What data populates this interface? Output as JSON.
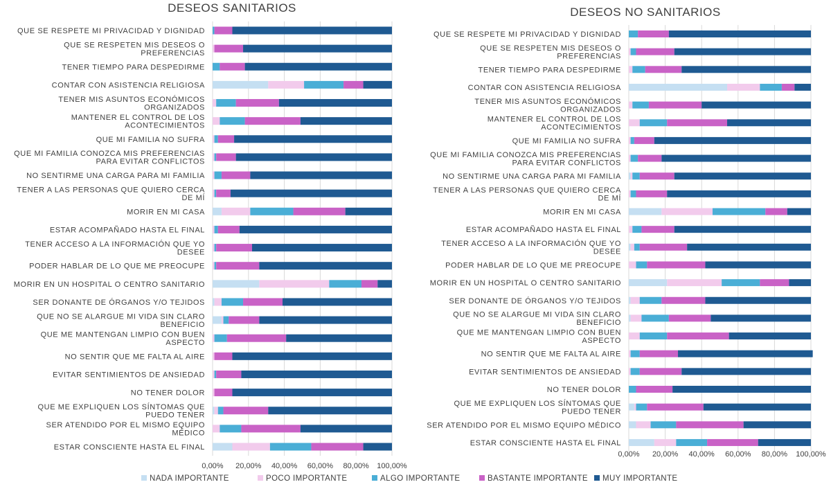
{
  "legend": [
    {
      "label": "NADA IMPORTANTE",
      "color": "#c5dff2"
    },
    {
      "label": "POCO IMPORTANTE",
      "color": "#f2cbec"
    },
    {
      "label": "ALGO IMPORTANTE",
      "color": "#4aaed6"
    },
    {
      "label": "BASTANTE IMPORTANTE",
      "color": "#c962c6"
    },
    {
      "label": "MUY IMPORTANTE",
      "color": "#1f5a92"
    }
  ],
  "chart_data": [
    {
      "type": "bar",
      "orientation": "horizontal",
      "stacked": true,
      "title": "DESEOS SANITARIOS",
      "xlim": [
        0,
        100
      ],
      "xticks": [
        "0,00%",
        "20,00%",
        "40,00%",
        "60,00%",
        "80,00%",
        "100,00%"
      ],
      "grid": true,
      "legend_position": "bottom",
      "categories": [
        [
          "QUE SE RESPETE MI PRIVACIDAD Y DIGNIDAD"
        ],
        [
          "QUE SE RESPETEN MIS DESEOS O",
          "PREFERENCIAS"
        ],
        [
          "TENER TIEMPO PARA DESPEDIRME"
        ],
        [
          "CONTAR CON ASISTENCIA RELIGIOSA"
        ],
        [
          "TENER MIS ASUNTOS ECONÓMICOS",
          "ORGANIZADOS"
        ],
        [
          "MANTENER EL CONTROL DE LOS",
          "ACONTECIMIENTOS"
        ],
        [
          "QUE MI FAMILIA NO SUFRA"
        ],
        [
          "QUE MI FAMILIA CONOZCA MIS PREFERENCIAS",
          "PARA EVITAR CONFLICTOS"
        ],
        [
          "NO SENTIRME UNA CARGA PARA MI FAMILIA"
        ],
        [
          "TENER A LAS PERSONAS QUE QUIERO CERCA",
          "DE MÍ"
        ],
        [
          "MORIR EN MI CASA"
        ],
        [
          "ESTAR ACOMPAÑADO HASTA EL FINAL"
        ],
        [
          "TENER ACCESO A LA INFORMACIÓN QUE YO",
          "DESEE"
        ],
        [
          "PODER HABLAR DE LO QUE ME PREOCUPE"
        ],
        [
          "MORIR EN UN HOSPITAL O CENTRO SANITARIO"
        ],
        [
          "SER DONANTE DE ÓRGANOS Y/O TEJIDOS"
        ],
        [
          "QUE NO SE ALARGUE MI VIDA SIN CLARO",
          "BENEFICIO"
        ],
        [
          "QUE ME MANTENGAN LIMPIO CON BUEN",
          "ASPECTO"
        ],
        [
          "NO SENTIR QUE ME FALTA AL AIRE"
        ],
        [
          "EVITAR SENTIMIENTOS DE ANSIEDAD"
        ],
        [
          "NO TENER DOLOR"
        ],
        [
          "QUE ME EXPLIQUEN LOS SÍNTOMAS QUE",
          "PUEDO TENER"
        ],
        [
          "SER ATENDIDO POR EL MISMO EQUIPO",
          "MÉDICO"
        ],
        [
          "ESTAR CONSCIENTE HASTA EL FINAL"
        ]
      ],
      "series": [
        {
          "name": "NADA IMPORTANTE",
          "values": [
            0,
            0,
            0,
            31,
            0,
            0,
            0,
            0,
            0,
            0,
            5,
            0,
            0,
            0,
            26,
            1,
            5,
            0,
            0,
            0,
            0,
            1,
            0,
            11
          ]
        },
        {
          "name": "POCO IMPORTANTE",
          "values": [
            0,
            1,
            0,
            20,
            2,
            4,
            1,
            1,
            1,
            1,
            16,
            1,
            1,
            1,
            39,
            4,
            1,
            1,
            1,
            1,
            1,
            2,
            4,
            21
          ]
        },
        {
          "name": "ALGO IMPORTANTE",
          "values": [
            1,
            0,
            4,
            22,
            11,
            14,
            2,
            1,
            4,
            1,
            24,
            2,
            1,
            1,
            18,
            12,
            3,
            7,
            0,
            1,
            0,
            3,
            12,
            23
          ]
        },
        {
          "name": "BASTANTE IMPORTANTE",
          "values": [
            10,
            16,
            14,
            11,
            24,
            31,
            9,
            11,
            16,
            8,
            29,
            12,
            20,
            24,
            9,
            22,
            17,
            33,
            10,
            14,
            10,
            25,
            33,
            29
          ]
        },
        {
          "name": "MUY IMPORTANTE",
          "values": [
            89,
            83,
            82,
            16,
            63,
            51,
            88,
            87,
            79,
            90,
            26,
            85,
            78,
            74,
            8,
            61,
            74,
            59,
            89,
            84,
            89,
            69,
            51,
            16
          ]
        }
      ]
    },
    {
      "type": "bar",
      "orientation": "horizontal",
      "stacked": true,
      "title": "DESEOS NO SANITARIOS",
      "xlim": [
        0,
        100
      ],
      "xticks": [
        "0,00%",
        "20,00%",
        "40,00%",
        "60,00%",
        "80,00%",
        "100,00%"
      ],
      "grid": true,
      "legend_position": "bottom",
      "categories": [
        [
          "QUE SE RESPETE MI PRIVACIDAD Y DIGNIDAD"
        ],
        [
          "QUE SE RESPETEN MIS DESEOS O",
          "PREFERENCIAS"
        ],
        [
          "TENER TIEMPO PARA DESPEDIRME"
        ],
        [
          "CONTAR CON ASISTENCIA RELIGIOSA"
        ],
        [
          "TENER MIS ASUNTOS ECONÓMICOS",
          "ORGANIZADOS"
        ],
        [
          "MANTENER EL CONTROL DE LOS",
          "ACONTECIMIENTOS"
        ],
        [
          "QUE MI FAMILIA NO SUFRA"
        ],
        [
          "QUE MI FAMILIA CONOZCA MIS PREFERENCIAS",
          "PARA EVITAR CONFLICTOS"
        ],
        [
          "NO SENTIRME UNA CARGA PARA MI FAMILIA"
        ],
        [
          "TENER A LAS PERSONAS QUE QUIERO CERCA",
          "DE MÍ"
        ],
        [
          "MORIR EN MI CASA"
        ],
        [
          "ESTAR ACOMPAÑADO HASTA EL FINAL"
        ],
        [
          "TENER ACCESO A LA INFORMACIÓN QUE YO",
          "DESEE"
        ],
        [
          "PODER HABLAR DE LO QUE ME PREOCUPE"
        ],
        [
          "MORIR EN UN HOSPITAL O CENTRO SANITARIO"
        ],
        [
          "SER DONANTE DE ÓRGANOS Y/O TEJIDOS"
        ],
        [
          "QUE NO SE ALARGUE MI VIDA SIN CLARO",
          "BENEFICIO"
        ],
        [
          "QUE ME MANTENGAN LIMPIO CON BUEN",
          "ASPECTO"
        ],
        [
          "NO SENTIR QUE ME FALTA AL AIRE"
        ],
        [
          "EVITAR SENTIMIENTOS DE ANSIEDAD"
        ],
        [
          "NO TENER DOLOR"
        ],
        [
          "QUE ME EXPLIQUEN LOS SÍNTOMAS QUE",
          "PUEDO TENER"
        ],
        [
          "SER ATENDIDO POR EL MISMO EQUIPO MÉDICO"
        ],
        [
          "ESTAR CONSCIENTE HASTA EL FINAL"
        ]
      ],
      "series": [
        {
          "name": "NADA IMPORTANTE",
          "values": [
            0,
            0,
            0,
            54,
            0,
            0,
            0,
            0,
            1,
            0,
            18,
            0,
            1,
            0,
            21,
            1,
            1,
            0,
            0,
            0,
            0,
            3,
            4,
            14
          ]
        },
        {
          "name": "POCO IMPORTANTE",
          "values": [
            0,
            1,
            2,
            18,
            2,
            6,
            1,
            1,
            1,
            1,
            28,
            2,
            2,
            4,
            30,
            5,
            6,
            6,
            1,
            1,
            0,
            1,
            8,
            12
          ]
        },
        {
          "name": "ALGO IMPORTANTE",
          "values": [
            5,
            3,
            7,
            12,
            9,
            15,
            2,
            4,
            4,
            3,
            29,
            5,
            3,
            6,
            21,
            12,
            15,
            15,
            5,
            5,
            4,
            6,
            14,
            17
          ]
        },
        {
          "name": "BASTANTE IMPORTANTE",
          "values": [
            17,
            21,
            20,
            7,
            29,
            33,
            11,
            13,
            19,
            17,
            12,
            18,
            26,
            32,
            16,
            24,
            23,
            34,
            21,
            23,
            20,
            31,
            37,
            28
          ]
        },
        {
          "name": "MUY IMPORTANTE",
          "values": [
            78,
            75,
            71,
            9,
            60,
            46,
            86,
            82,
            75,
            79,
            13,
            75,
            68,
            58,
            12,
            58,
            55,
            45,
            74,
            71,
            76,
            59,
            37,
            29
          ]
        }
      ]
    }
  ]
}
